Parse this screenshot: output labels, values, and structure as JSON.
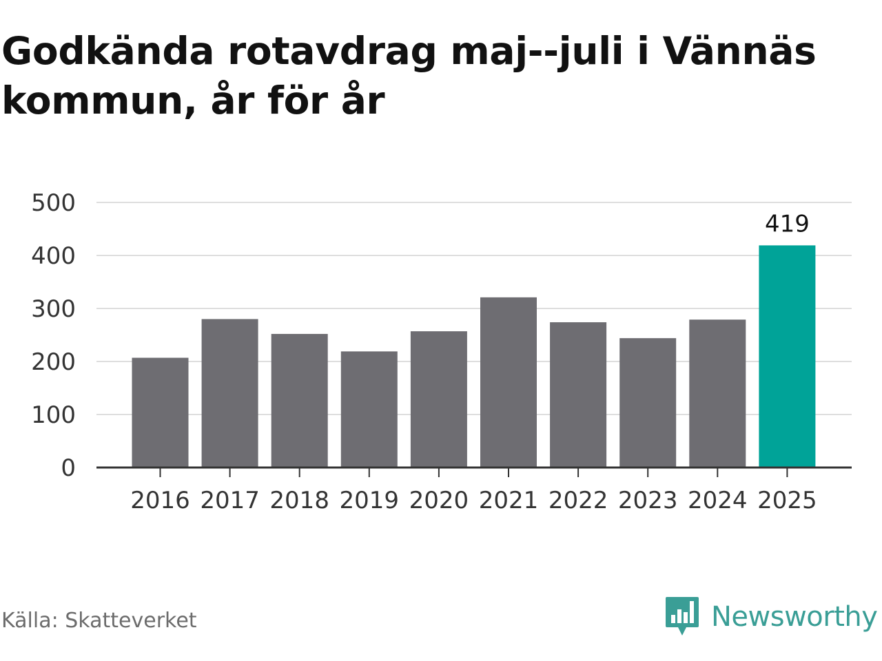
{
  "title": "Godkända rotavdrag maj--juli i Vännäs kommun, år för år",
  "source": "Källa: Skatteverket",
  "brand": "Newsworthy",
  "colors": {
    "bar": "#6e6d72",
    "highlight": "#00a398",
    "grid": "#dedede",
    "axis": "#333333",
    "tick_text": "#333333",
    "label_text": "#111111",
    "brand": "#3a9e96"
  },
  "chart_data": {
    "type": "bar",
    "categories": [
      "2016",
      "2017",
      "2018",
      "2019",
      "2020",
      "2021",
      "2022",
      "2023",
      "2024",
      "2025"
    ],
    "values": [
      207,
      280,
      252,
      219,
      257,
      321,
      274,
      244,
      279,
      419
    ],
    "highlight_index": 9,
    "data_labels": [
      {
        "index": 9,
        "text": "419"
      }
    ],
    "y_ticks": [
      0,
      100,
      200,
      300,
      400,
      500
    ],
    "ylim": [
      0,
      500
    ],
    "xlabel": "",
    "ylabel": "",
    "grid": true,
    "legend": "none"
  }
}
